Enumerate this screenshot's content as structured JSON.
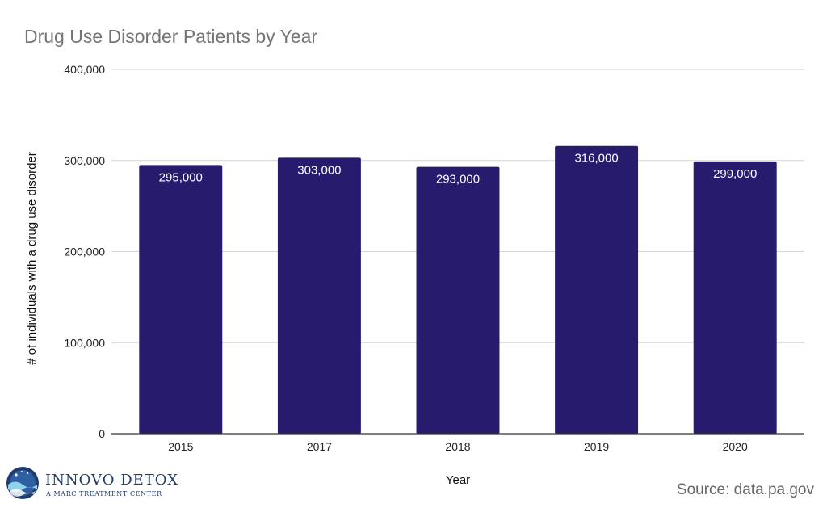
{
  "chart_data": {
    "type": "bar",
    "title": "Drug Use Disorder Patients by Year",
    "xlabel": "Year",
    "ylabel": "# of individuals with a drug use disorder",
    "categories": [
      "2015",
      "2017",
      "2018",
      "2019",
      "2020"
    ],
    "values": [
      295000,
      303000,
      293000,
      316000,
      299000
    ],
    "data_labels": [
      "295,000",
      "303,000",
      "293,000",
      "316,000",
      "299,000"
    ],
    "ylim": [
      0,
      400000
    ],
    "yticks": [
      0,
      100000,
      200000,
      300000,
      400000
    ],
    "ytick_labels": [
      "0",
      "100,000",
      "200,000",
      "300,000",
      "400,000"
    ],
    "grid": true,
    "legend": "none",
    "bar_color": "#271b6d"
  },
  "source": "Source: data.pa.gov",
  "logo": {
    "name": "INNOVO DETOX",
    "tagline": "A MARC TREATMENT CENTER",
    "color": "#1f3a6d"
  }
}
